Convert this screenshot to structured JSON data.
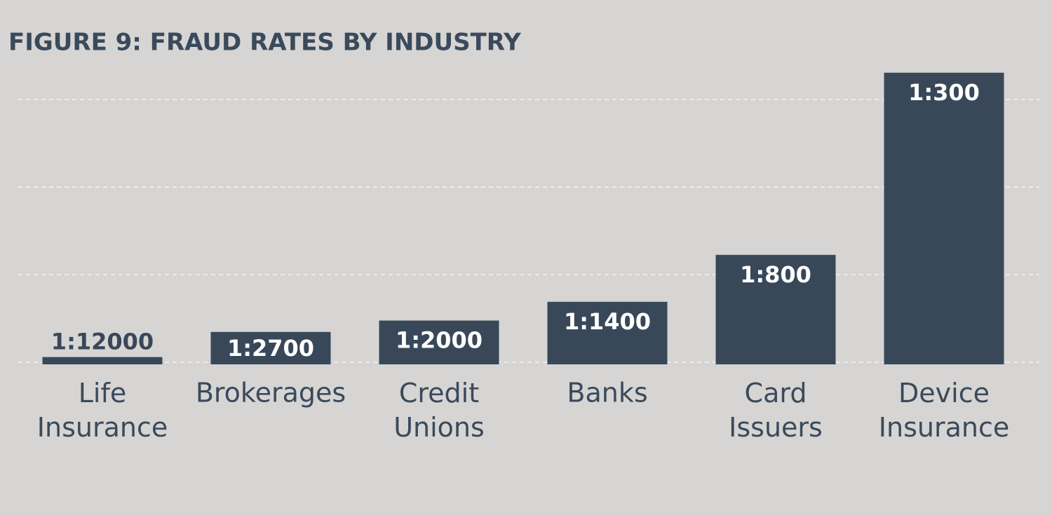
{
  "chart_data": {
    "type": "bar",
    "title": "FIGURE 9: FRAUD RATES BY INDUSTRY",
    "categories": [
      "Life Insurance",
      "Brokerages",
      "Credit Unions",
      "Banks",
      "Card Issuers",
      "Device Insurance"
    ],
    "values": [
      8.33e-05,
      0.00037,
      0.0005,
      0.000714,
      0.00125,
      0.00333
    ],
    "value_labels": [
      "1:12000",
      "1:2700",
      "1:2000",
      "1:1400",
      "1:800",
      "1:300"
    ],
    "color": "#384859",
    "ylim": [
      0,
      0.0036
    ],
    "yticks": [
      0,
      0.001,
      0.002,
      0.003
    ],
    "grid": true
  }
}
